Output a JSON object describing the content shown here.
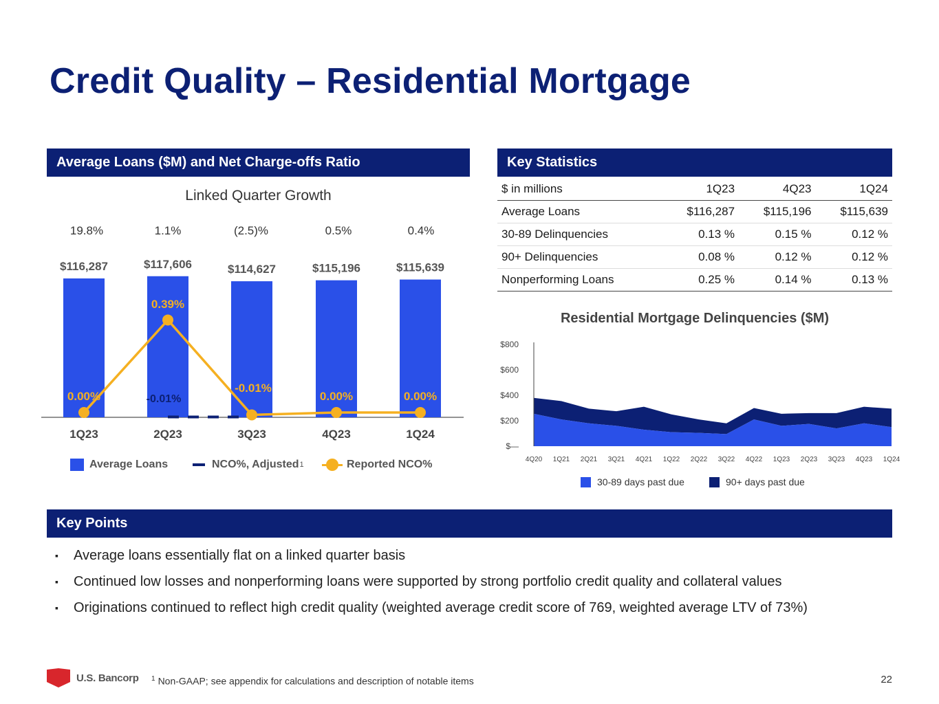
{
  "page": {
    "title": "Credit Quality – Residential Mortgage",
    "page_number": "22",
    "footnote_marker": "1",
    "footnote": "Non-GAAP; see appendix for calculations and description of notable items",
    "logo_text": "U.S. Bancorp"
  },
  "colors": {
    "navy": "#0c2074",
    "blue": "#2a50e8",
    "gold": "#f5b021",
    "red": "#d8262c"
  },
  "left_panel": {
    "header": "Average Loans ($M) and Net Charge-offs Ratio",
    "subtitle": "Linked Quarter Growth",
    "growth": [
      "19.8%",
      "1.1%",
      "(2.5)%",
      "0.5%",
      "0.4%"
    ],
    "legend": {
      "avg_loans": "Average Loans",
      "nco_adjusted": "NCO%, Adjusted",
      "nco_adjusted_marker": "1",
      "reported_nco": "Reported NCO%"
    }
  },
  "key_stats": {
    "header": "Key Statistics",
    "columns": [
      "$ in millions",
      "1Q23",
      "4Q23",
      "1Q24"
    ],
    "rows": [
      [
        "Average Loans",
        "$116,287",
        "$115,196",
        "$115,639"
      ],
      [
        "30-89 Delinquencies",
        "0.13 %",
        "0.15 %",
        "0.12 %"
      ],
      [
        "90+ Delinquencies",
        "0.08 %",
        "0.12 %",
        "0.12 %"
      ],
      [
        "Nonperforming Loans",
        "0.25 %",
        "0.14 %",
        "0.13 %"
      ]
    ]
  },
  "key_points": {
    "header": "Key Points",
    "items": [
      "Average loans essentially flat on a linked quarter basis",
      "Continued low losses and nonperforming loans were supported by strong portfolio credit quality and collateral values",
      "Originations continued to reflect high credit quality (weighted average credit score of 769, weighted average LTV of 73%)"
    ]
  },
  "chart_data": [
    {
      "type": "bar",
      "title": "Average Loans ($M) and Net Charge-offs Ratio",
      "categories": [
        "1Q23",
        "2Q23",
        "3Q23",
        "4Q23",
        "1Q24"
      ],
      "series": [
        {
          "name": "Average Loans",
          "values": [
            116287,
            117606,
            114627,
            115196,
            115639
          ],
          "labels": [
            "$116,287",
            "$117,606",
            "$114,627",
            "$115,196",
            "$115,639"
          ]
        },
        {
          "name": "NCO%, Adjusted",
          "values": [
            null,
            -0.01,
            -0.01,
            null,
            null
          ],
          "labels": [
            "",
            "-0.01%",
            "-0.01%",
            "",
            ""
          ]
        },
        {
          "name": "Reported NCO%",
          "values": [
            0.0,
            0.39,
            -0.01,
            0.0,
            0.0
          ],
          "labels": [
            "0.00%",
            "0.39%",
            "",
            "0.00%",
            "0.00%"
          ]
        }
      ],
      "legend": "bottom"
    },
    {
      "type": "area",
      "title": "Residential Mortgage Delinquencies ($M)",
      "x": [
        "4Q20",
        "1Q21",
        "2Q21",
        "3Q21",
        "4Q21",
        "1Q22",
        "2Q22",
        "3Q22",
        "4Q22",
        "1Q23",
        "2Q23",
        "3Q23",
        "4Q23",
        "1Q24"
      ],
      "series": [
        {
          "name": "30-89 days past due",
          "values": [
            255,
            210,
            180,
            160,
            130,
            110,
            105,
            95,
            210,
            160,
            175,
            140,
            180,
            150
          ]
        },
        {
          "name": "90+ days past due",
          "values": [
            125,
            145,
            115,
            115,
            180,
            140,
            105,
            85,
            90,
            95,
            85,
            120,
            130,
            145
          ]
        }
      ],
      "stacked": true,
      "ylim": [
        0,
        800
      ],
      "yticks": [
        0,
        200,
        400,
        600,
        800
      ],
      "ytick_labels": [
        "$—",
        "$200",
        "$400",
        "$600",
        "$800"
      ],
      "legend": "bottom"
    }
  ]
}
